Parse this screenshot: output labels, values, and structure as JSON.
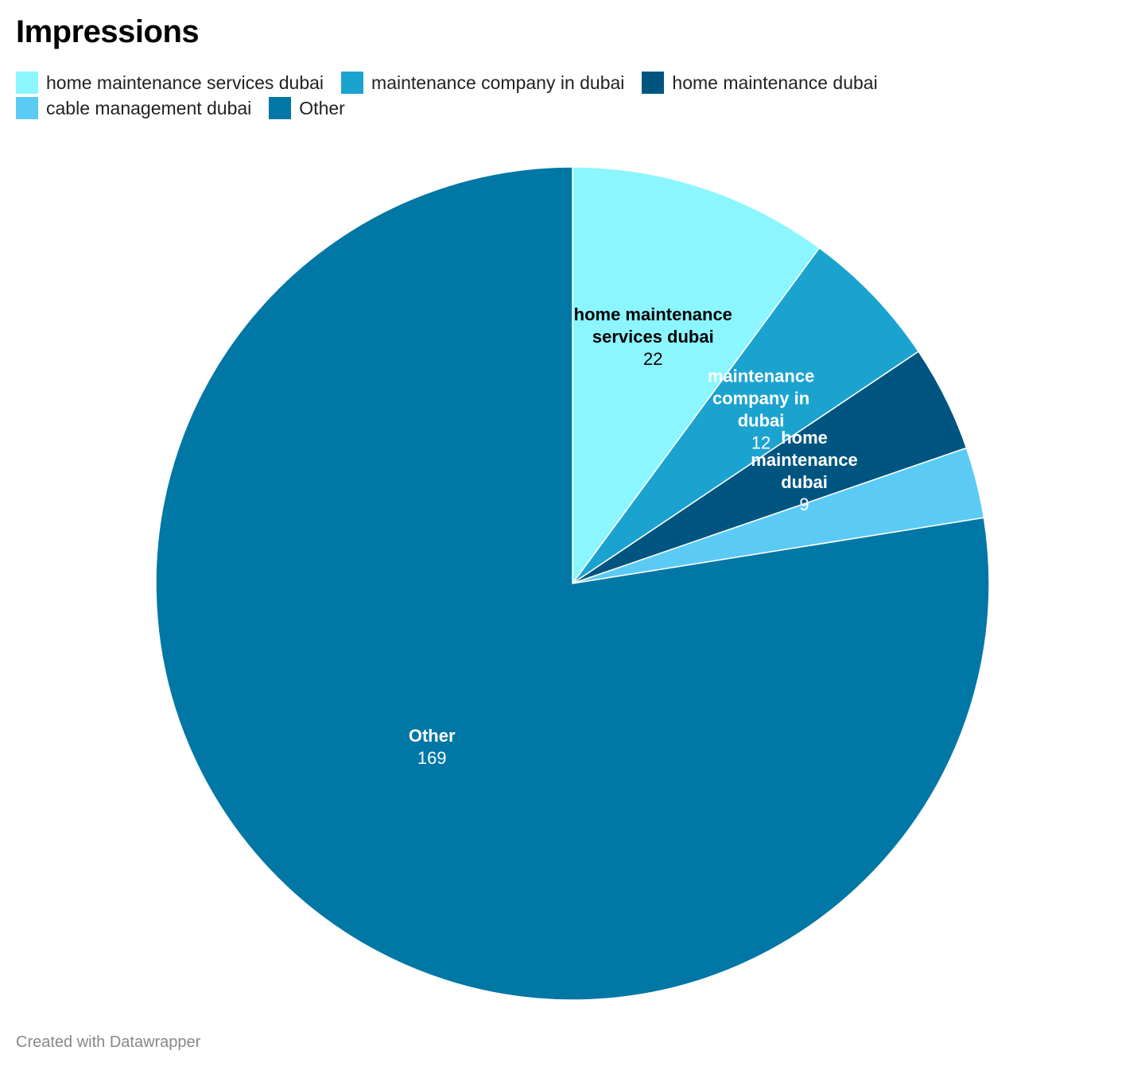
{
  "chart_data": {
    "type": "pie",
    "title": "Impressions",
    "categories": [
      "home maintenance services dubai",
      "maintenance company in dubai",
      "home maintenance dubai",
      "cable management dubai",
      "Other"
    ],
    "values": [
      22,
      12,
      9,
      6,
      169
    ],
    "colors": [
      "#8bf6ff",
      "#1ba3d0",
      "#005580",
      "#5bcbf5",
      "#0077a4"
    ],
    "label_colors": [
      "#000000",
      "#ffffff",
      "#ffffff",
      "#ffffff",
      "#ffffff"
    ],
    "slice_labels": [
      {
        "lines": [
          "home maintenance",
          "services dubai"
        ],
        "value": "22"
      },
      {
        "lines": [
          "maintenance",
          "company in",
          "dubai"
        ],
        "value": "12"
      },
      {
        "lines": [
          "home",
          "maintenance",
          "dubai"
        ],
        "value": "9"
      },
      null,
      {
        "lines": [
          "Other"
        ],
        "value": "169"
      }
    ],
    "legend_position": "top-left"
  },
  "legend": [
    {
      "label": "home maintenance services dubai",
      "color": "#8bf6ff"
    },
    {
      "label": "maintenance company in dubai",
      "color": "#1ba3d0"
    },
    {
      "label": "home maintenance dubai",
      "color": "#005580"
    },
    {
      "label": "cable management dubai",
      "color": "#5bcbf5"
    },
    {
      "label": "Other",
      "color": "#0077a4"
    }
  ],
  "footer": "Created with Datawrapper"
}
